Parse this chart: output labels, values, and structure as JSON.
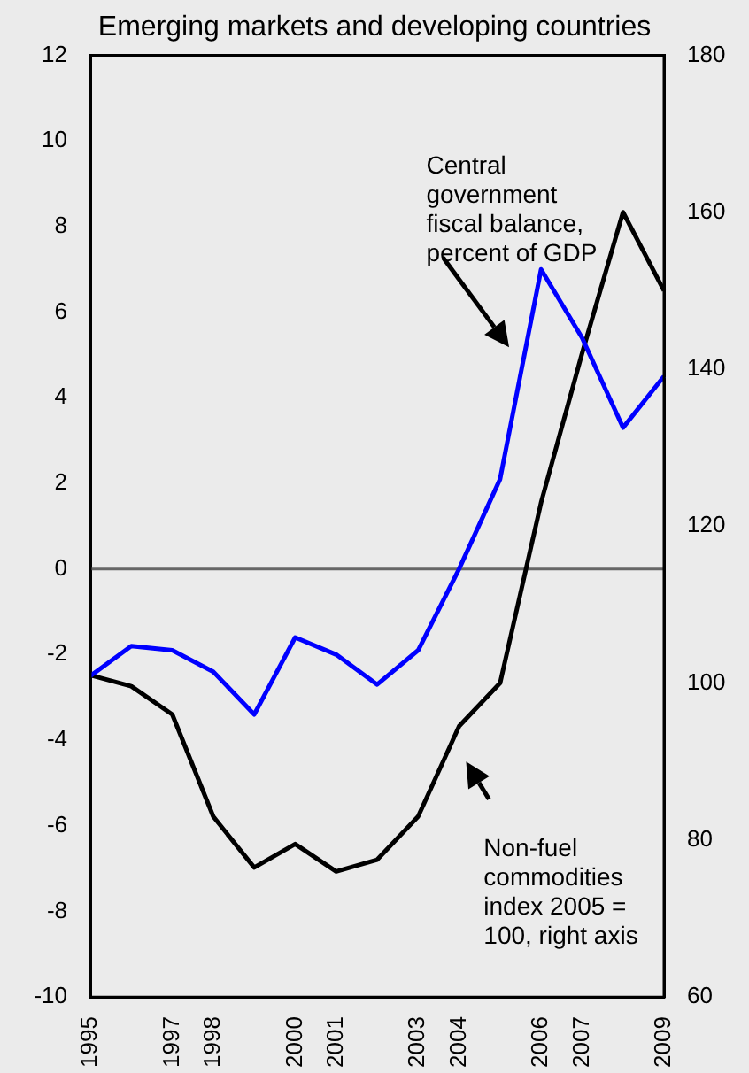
{
  "chart_data": {
    "type": "line",
    "subtitle": "Emerging markets and developing countries",
    "categories": [
      "1995",
      null,
      "1997",
      "1998",
      null,
      "2000",
      "2001",
      null,
      "2003",
      "2004",
      null,
      "2006",
      "2007",
      null,
      "2009"
    ],
    "series": [
      {
        "color": "#0000ff",
        "values": [
          -2.5,
          -1.8,
          -1.9,
          -2.4,
          -3.4,
          -1.6,
          -2.0,
          -2.7,
          -1.9,
          0.0,
          2.1,
          7.0,
          5.4,
          3.3,
          4.5
        ]
      },
      {
        "color": "#000000",
        "axis": "y2",
        "values": [
          101,
          99.6,
          96,
          83,
          76.5,
          79.5,
          76,
          77.5,
          83,
          94.5,
          100,
          123,
          142,
          160,
          150
        ]
      }
    ],
    "ylim": [
      -10,
      12
    ],
    "yticks": [
      -10,
      -8,
      -6,
      -4,
      -2,
      0,
      2,
      4,
      6,
      8,
      10,
      12
    ],
    "y2lim": [
      60,
      180
    ],
    "y2ticks": [
      60,
      80,
      100,
      120,
      140,
      160,
      180
    ],
    "ref_lines": [
      {
        "axis": "y",
        "value": 0,
        "color": "#666666"
      }
    ],
    "annotations": [
      "Central government fiscal balance, percent of GDP",
      "Non-fuel commodities index 2005 = 100, right axis"
    ],
    "grid": false,
    "legend": false,
    "marker": "none",
    "line_style": "solid"
  }
}
